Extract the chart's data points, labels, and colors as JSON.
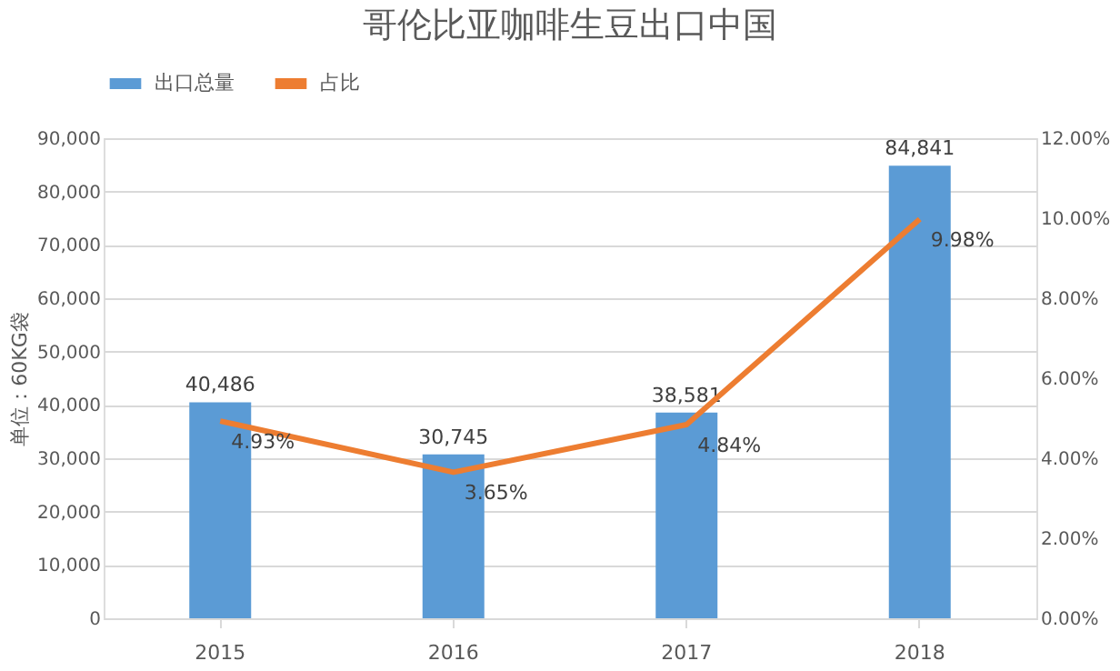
{
  "chart_data": {
    "type": "bar",
    "title": "哥伦比亚咖啡生豆出口中国",
    "ylabel": "单位：60KG袋",
    "categories": [
      "2015",
      "2016",
      "2017",
      "2018"
    ],
    "series": [
      {
        "name": "出口总量",
        "color": "#5b9bd5",
        "values": [
          40486,
          30745,
          38581,
          84841
        ],
        "value_labels": [
          "40,486",
          "30,745",
          "38,581",
          "84,841"
        ]
      },
      {
        "name": "占比",
        "type": "line",
        "axis": "y2",
        "color": "#ed7d31",
        "values": [
          4.93,
          3.65,
          4.84,
          9.98
        ],
        "value_labels": [
          "4.93%",
          "3.65%",
          "4.84%",
          "9.98%"
        ]
      }
    ],
    "ylim": [
      0,
      90000
    ],
    "yticks": [
      {
        "value": 0,
        "label": "0"
      },
      {
        "value": 10000,
        "label": "10,000"
      },
      {
        "value": 20000,
        "label": "20,000"
      },
      {
        "value": 30000,
        "label": "30,000"
      },
      {
        "value": 40000,
        "label": "40,000"
      },
      {
        "value": 50000,
        "label": "50,000"
      },
      {
        "value": 60000,
        "label": "60,000"
      },
      {
        "value": 70000,
        "label": "70,000"
      },
      {
        "value": 80000,
        "label": "80,000"
      },
      {
        "value": 90000,
        "label": "90,000"
      }
    ],
    "y2lim": [
      0,
      12
    ],
    "y2ticks": [
      {
        "value": 0,
        "label": "0.00%"
      },
      {
        "value": 2,
        "label": "2.00%"
      },
      {
        "value": 4,
        "label": "4.00%"
      },
      {
        "value": 6,
        "label": "6.00%"
      },
      {
        "value": 8,
        "label": "8.00%"
      },
      {
        "value": 10,
        "label": "10.00%"
      },
      {
        "value": 12,
        "label": "12.00%"
      }
    ],
    "grid": "y",
    "legend": "top",
    "marker": "none",
    "line_style": "solid"
  }
}
